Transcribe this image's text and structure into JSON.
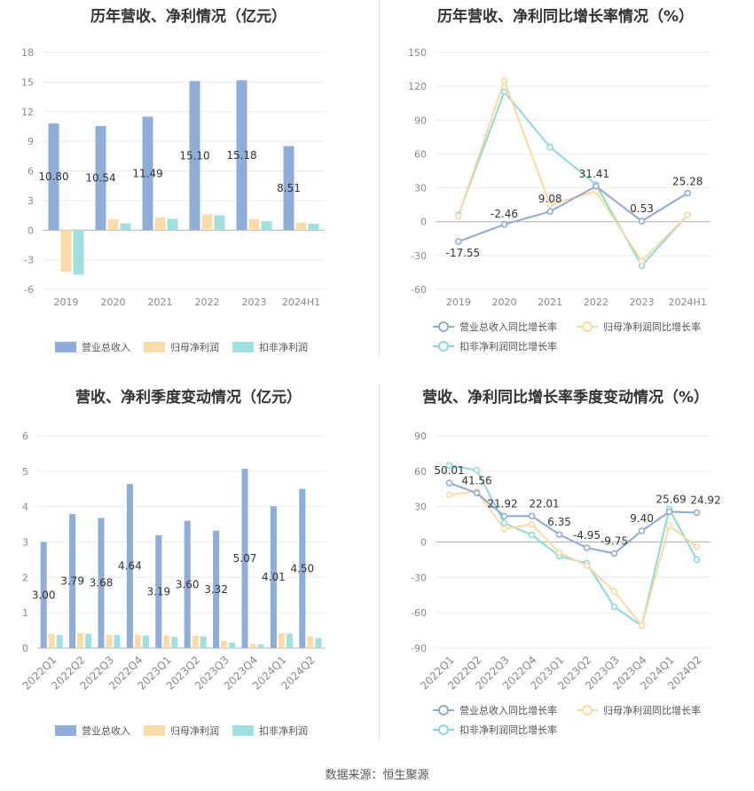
{
  "colors": {
    "revenue": "#8fadd9",
    "net_profit": "#fbdca6",
    "deducted_profit": "#9fe0e0",
    "revenue_line": "#8fa8d6",
    "net_line": "#fbd99a",
    "deducted_line": "#8adada"
  },
  "source": "数据来源：恒生聚源",
  "chart_data": [
    {
      "type": "bar",
      "title": "历年营收、净利情况（亿元）",
      "categories": [
        "2019",
        "2020",
        "2021",
        "2022",
        "2023",
        "2024H1"
      ],
      "yticks": [
        "18",
        "15",
        "12",
        "9",
        "6",
        "3",
        "0",
        "-3",
        "-6"
      ],
      "ylim": [
        -6,
        18
      ],
      "grid": true,
      "legend_position": "bottom",
      "series": [
        {
          "name": "营业总收入",
          "values": [
            10.8,
            10.54,
            11.49,
            15.1,
            15.18,
            8.51
          ],
          "labels": [
            "10.80",
            "10.54",
            "11.49",
            "15.10",
            "15.18",
            "8.51"
          ]
        },
        {
          "name": "归母净利润",
          "values": [
            -4.2,
            1.1,
            1.3,
            1.6,
            1.1,
            0.75
          ]
        },
        {
          "name": "扣非净利润",
          "values": [
            -4.5,
            0.7,
            1.15,
            1.5,
            0.9,
            0.65
          ]
        }
      ]
    },
    {
      "type": "line",
      "title": "历年营收、净利同比增长率情况（%）",
      "categories": [
        "2019",
        "2020",
        "2021",
        "2022",
        "2023",
        "2024H1"
      ],
      "yticks": [
        "150",
        "120",
        "90",
        "60",
        "30",
        "0",
        "-30",
        "-60"
      ],
      "ylim": [
        -60,
        150
      ],
      "grid": true,
      "legend_position": "bottom",
      "series": [
        {
          "name": "营业总收入同比增长率",
          "values": [
            -17.55,
            -2.46,
            9.08,
            31.41,
            0.53,
            25.28
          ],
          "labels": [
            "-17.55",
            "-2.46",
            "9.08",
            "31.41",
            "0.53",
            "25.28"
          ]
        },
        {
          "name": "归母净利润同比增长率",
          "values": [
            5,
            125,
            15,
            27,
            -35,
            6
          ]
        },
        {
          "name": "扣非净利润同比增长率",
          "values": [
            6,
            115,
            66,
            33,
            -39,
            6
          ]
        }
      ]
    },
    {
      "type": "bar",
      "title": "营收、净利季度变动情况（亿元）",
      "categories": [
        "2022Q1",
        "2022Q2",
        "2022Q3",
        "2022Q4",
        "2023Q1",
        "2023Q2",
        "2023Q3",
        "2023Q4",
        "2024Q1",
        "2024Q2"
      ],
      "yticks": [
        "6",
        "5",
        "4",
        "3",
        "2",
        "1",
        "0"
      ],
      "ylim": [
        0,
        6
      ],
      "grid": true,
      "legend_position": "bottom",
      "series": [
        {
          "name": "营业总收入",
          "values": [
            3.0,
            3.79,
            3.68,
            4.64,
            3.19,
            3.6,
            3.32,
            5.07,
            4.01,
            4.5
          ],
          "labels": [
            "3.00",
            "3.79",
            "3.68",
            "4.64",
            "3.19",
            "3.60",
            "3.32",
            "5.07",
            "4.01",
            "4.50"
          ]
        },
        {
          "name": "归母净利润",
          "values": [
            0.4,
            0.43,
            0.37,
            0.38,
            0.35,
            0.35,
            0.2,
            0.12,
            0.42,
            0.33
          ]
        },
        {
          "name": "扣非净利润",
          "values": [
            0.37,
            0.4,
            0.37,
            0.36,
            0.32,
            0.33,
            0.16,
            0.1,
            0.41,
            0.28
          ]
        }
      ]
    },
    {
      "type": "line",
      "title": "营收、净利同比增长率季度变动情况（%）",
      "categories": [
        "2022Q1",
        "2022Q2",
        "2022Q3",
        "2022Q4",
        "2023Q1",
        "2023Q2",
        "2023Q3",
        "2023Q4",
        "2024Q1",
        "2024Q2"
      ],
      "yticks": [
        "90",
        "60",
        "30",
        "0",
        "-30",
        "-60",
        "-90"
      ],
      "ylim": [
        -90,
        90
      ],
      "grid": true,
      "legend_position": "bottom",
      "series": [
        {
          "name": "营业总收入同比增长率",
          "values": [
            50.01,
            41.56,
            21.92,
            22.01,
            6.35,
            -4.95,
            -9.75,
            9.4,
            25.69,
            24.92
          ],
          "labels": [
            "50.01",
            "41.56",
            "21.92",
            "22.01",
            "6.35",
            "-4.95",
            "-9.75",
            "9.40",
            "25.69",
            "24.92"
          ]
        },
        {
          "name": "归母净利润同比增长率",
          "values": [
            40,
            43,
            11,
            15,
            -9,
            -20,
            -42,
            -71,
            14,
            -4
          ]
        },
        {
          "name": "扣非净利润同比增长率",
          "values": [
            65,
            61,
            16,
            6,
            -12,
            -18,
            -55,
            -71,
            28,
            -15
          ]
        }
      ]
    }
  ]
}
